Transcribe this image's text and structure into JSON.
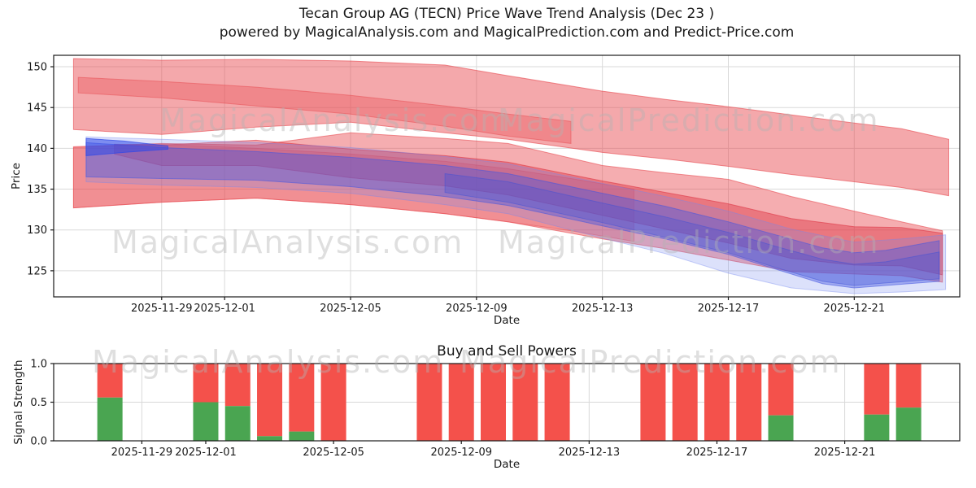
{
  "header": {
    "title": "Tecan Group AG (TECN) Price Wave Trend Analysis (Dec 23 )",
    "subtitle": "powered by MagicalAnalysis.com and MagicalPrediction.com and Predict-Price.com"
  },
  "watermarks": {
    "analysis": "MagicalAnalysis.com",
    "prediction": "MagicalPrediction.com"
  },
  "chart_data": [
    {
      "id": "price",
      "type": "area",
      "title": "",
      "xlabel": "Date",
      "ylabel": "Price",
      "grid": true,
      "legend": "none",
      "origin_date": "2025-11-26",
      "xlim_days": [
        -0.43,
        28.35
      ],
      "ylim": [
        121.8,
        151.4
      ],
      "yticks": [
        125,
        130,
        135,
        140,
        145,
        150
      ],
      "ytick_labels": [
        "125",
        "130",
        "135",
        "140",
        "145",
        "150"
      ],
      "xtick_dates": [
        "2025-11-29",
        "2025-12-01",
        "2025-12-05",
        "2025-12-09",
        "2025-12-13",
        "2025-12-17",
        "2025-12-21"
      ],
      "band_note": "points are [days_since_origin, upper_price, lower_price]",
      "bands": [
        {
          "name": "upper-cone",
          "color": "#e84a50",
          "opacity": 0.48,
          "points": [
            [
              0.2,
              151.0,
              142.3
            ],
            [
              3,
              150.8,
              141.7
            ],
            [
              6,
              150.9,
              142.6
            ],
            [
              9,
              150.7,
              143.2
            ],
            [
              12,
              150.2,
              141.9
            ],
            [
              14,
              148.9,
              141.1
            ],
            [
              17,
              147.0,
              139.5
            ],
            [
              19,
              146.0,
              138.7
            ],
            [
              21,
              145.1,
              137.8
            ],
            [
              23,
              144.1,
              136.8
            ],
            [
              25,
              143.1,
              135.9
            ],
            [
              26.5,
              142.4,
              135.2
            ],
            [
              28,
              141.1,
              134.2
            ]
          ]
        },
        {
          "name": "upper-inner",
          "color": "#e84a50",
          "opacity": 0.35,
          "points": [
            [
              0.35,
              148.7,
              146.8
            ],
            [
              3,
              148.2,
              146.2
            ],
            [
              6,
              147.5,
              145.2
            ],
            [
              9,
              146.5,
              144.2
            ],
            [
              12,
              145.2,
              142.7
            ],
            [
              14,
              144.2,
              141.5
            ],
            [
              16,
              143.3,
              140.6
            ]
          ]
        },
        {
          "name": "left-block",
          "color": "#e84a50",
          "opacity": 0.3,
          "points": [
            [
              0.2,
              140.1,
              132.7
            ],
            [
              3,
              140.5,
              133.4
            ],
            [
              6,
              140.0,
              133.9
            ],
            [
              9,
              139.3,
              133.1
            ],
            [
              12,
              138.4,
              132.0
            ],
            [
              14,
              137.5,
              131.0
            ],
            [
              16,
              136.3,
              129.9
            ],
            [
              18,
              135.0,
              128.6
            ]
          ]
        },
        {
          "name": "mass-light",
          "color": "#e84a50",
          "opacity": 0.45,
          "points": [
            [
              0.2,
              140.2,
              132.7
            ],
            [
              3,
              140.6,
              133.4
            ],
            [
              6,
              140.4,
              133.9
            ],
            [
              9,
              141.9,
              133.1
            ],
            [
              12,
              141.2,
              132.0
            ],
            [
              14,
              140.6,
              131.0
            ],
            [
              17,
              137.9,
              128.9
            ],
            [
              19,
              137.0,
              127.7
            ],
            [
              21,
              136.2,
              126.3
            ],
            [
              23,
              134.1,
              124.9
            ],
            [
              25,
              132.3,
              124.6
            ],
            [
              26.5,
              131.0,
              124.4
            ],
            [
              27.8,
              129.9,
              123.6
            ]
          ]
        },
        {
          "name": "mass-dark",
          "color": "#dd3545",
          "opacity": 0.45,
          "points": [
            [
              1.5,
              140.5,
              139.3
            ],
            [
              3,
              140.4,
              137.9
            ],
            [
              6,
              141.0,
              137.9
            ],
            [
              9,
              139.9,
              136.4
            ],
            [
              12,
              139.1,
              135.4
            ],
            [
              14,
              138.3,
              134.3
            ],
            [
              17,
              136.0,
              131.8
            ],
            [
              19,
              134.6,
              130.1
            ],
            [
              21,
              133.2,
              128.4
            ],
            [
              23,
              131.4,
              126.5
            ],
            [
              25,
              130.4,
              125.7
            ],
            [
              26.5,
              130.3,
              125.6
            ],
            [
              27.8,
              129.6,
              124.5
            ]
          ]
        },
        {
          "name": "blue-fan",
          "color": "#7286ef",
          "opacity": 0.25,
          "points": [
            [
              0.6,
              141.4,
              135.9
            ],
            [
              3,
              141.1,
              135.5
            ],
            [
              6,
              140.7,
              135.2
            ],
            [
              9,
              140.1,
              134.5
            ],
            [
              12,
              139.0,
              133.1
            ],
            [
              14,
              138.1,
              132.0
            ],
            [
              17,
              135.7,
              129.0
            ],
            [
              19,
              134.1,
              127.1
            ],
            [
              21,
              132.3,
              124.7
            ],
            [
              23,
              130.1,
              122.9
            ],
            [
              25,
              128.5,
              122.2
            ],
            [
              26.5,
              128.9,
              122.4
            ],
            [
              27.9,
              129.4,
              122.7
            ]
          ]
        },
        {
          "name": "blue-core",
          "color": "#4356e0",
          "opacity": 0.4,
          "points": [
            [
              0.6,
              140.7,
              136.5
            ],
            [
              3,
              140.1,
              136.3
            ],
            [
              6,
              139.6,
              136.1
            ],
            [
              9,
              138.9,
              135.3
            ],
            [
              12,
              137.9,
              134.1
            ],
            [
              14,
              136.9,
              133.0
            ],
            [
              17,
              134.5,
              130.5
            ],
            [
              19,
              132.9,
              128.9
            ],
            [
              21,
              131.0,
              127.0
            ],
            [
              22.5,
              129.4,
              125.2
            ],
            [
              24,
              127.8,
              123.4
            ],
            [
              25,
              127.2,
              122.9
            ],
            [
              26,
              127.5,
              123.2
            ],
            [
              27.7,
              128.7,
              123.7
            ]
          ]
        },
        {
          "name": "blue-deep",
          "color": "#3c4fd8",
          "opacity": 0.3,
          "points": [
            [
              12,
              136.9,
              134.6
            ],
            [
              14,
              135.9,
              133.4
            ],
            [
              17,
              133.3,
              130.9
            ],
            [
              19,
              131.6,
              129.1
            ],
            [
              21,
              129.7,
              127.2
            ],
            [
              22.5,
              128.0,
              125.4
            ],
            [
              24,
              126.4,
              123.7
            ],
            [
              25,
              125.8,
              123.2
            ],
            [
              26,
              126.1,
              123.5
            ],
            [
              27.7,
              127.3,
              124.0
            ]
          ]
        },
        {
          "name": "blue-wedge",
          "color": "#2f48e8",
          "opacity": 0.55,
          "points": [
            [
              0.6,
              141.2,
              139.1
            ],
            [
              1.8,
              140.9,
              139.5
            ],
            [
              3.2,
              140.3,
              139.9
            ]
          ]
        }
      ]
    },
    {
      "id": "signal",
      "type": "bar",
      "title": "Buy and Sell Powers",
      "xlabel": "Date",
      "ylabel": "Signal Strength",
      "grid": true,
      "stacked": true,
      "origin_date": "2025-11-26",
      "xlim_days": [
        0.24,
        28.6
      ],
      "ylim": [
        0,
        1
      ],
      "yticks": [
        0,
        0.5,
        1
      ],
      "ytick_labels": [
        "0.0",
        "0.5",
        "1.0"
      ],
      "xtick_dates": [
        "2025-11-29",
        "2025-12-01",
        "2025-12-05",
        "2025-12-09",
        "2025-12-13",
        "2025-12-17",
        "2025-12-21"
      ],
      "colors": {
        "buy": "#4aa551",
        "sell": "#f4514b"
      },
      "bar_note": "buy (green, bottom) + sell (red, top) always total 1.0; gaps are weekends",
      "bars": [
        {
          "date": "2025-11-28",
          "buy": 0.56,
          "sell": 0.44
        },
        {
          "date": "2025-12-01",
          "buy": 0.5,
          "sell": 0.5
        },
        {
          "date": "2025-12-02",
          "buy": 0.45,
          "sell": 0.55
        },
        {
          "date": "2025-12-03",
          "buy": 0.06,
          "sell": 0.94
        },
        {
          "date": "2025-12-04",
          "buy": 0.12,
          "sell": 0.88
        },
        {
          "date": "2025-12-05",
          "buy": 0.0,
          "sell": 1.0
        },
        {
          "date": "2025-12-08",
          "buy": 0.0,
          "sell": 1.0
        },
        {
          "date": "2025-12-09",
          "buy": 0.0,
          "sell": 1.0
        },
        {
          "date": "2025-12-10",
          "buy": 0.0,
          "sell": 1.0
        },
        {
          "date": "2025-12-11",
          "buy": 0.0,
          "sell": 1.0
        },
        {
          "date": "2025-12-12",
          "buy": 0.0,
          "sell": 1.0
        },
        {
          "date": "2025-12-15",
          "buy": 0.0,
          "sell": 1.0
        },
        {
          "date": "2025-12-16",
          "buy": 0.0,
          "sell": 1.0
        },
        {
          "date": "2025-12-17",
          "buy": 0.0,
          "sell": 1.0
        },
        {
          "date": "2025-12-18",
          "buy": 0.0,
          "sell": 1.0
        },
        {
          "date": "2025-12-19",
          "buy": 0.33,
          "sell": 0.67
        },
        {
          "date": "2025-12-22",
          "buy": 0.34,
          "sell": 0.66
        },
        {
          "date": "2025-12-23",
          "buy": 0.43,
          "sell": 0.57
        }
      ]
    }
  ]
}
